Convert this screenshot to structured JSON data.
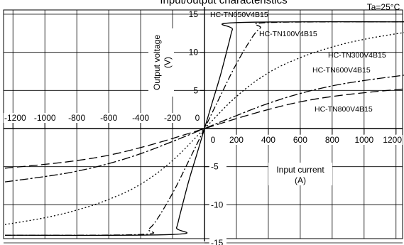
{
  "chart_data": {
    "type": "line",
    "title": "Input/output characteristics",
    "note": "Ta=25°C",
    "xlabel": "Input current",
    "xunit": "(A)",
    "ylabel": "Output voltage",
    "yunit": "(V)",
    "xlim": [
      -1250,
      1250
    ],
    "ylim": [
      -15,
      15
    ],
    "x_ticks": [
      "-1200",
      "-1000",
      "-800",
      "-600",
      "-400",
      "-200",
      "0",
      "200",
      "400",
      "600",
      "800",
      "1000",
      "1200"
    ],
    "y_ticks_pos": [
      "15",
      "10",
      "5"
    ],
    "y_ticks_neg": [
      "-5",
      "-10",
      "-15"
    ],
    "grid": true,
    "series": [
      {
        "name": "HC-TN050V4B15",
        "dash": "",
        "points": [
          [
            -1250,
            -14
          ],
          [
            -200,
            -13.9
          ],
          [
            -175,
            -13
          ],
          [
            -150,
            -11
          ],
          [
            -100,
            -7
          ],
          [
            -50,
            -3.5
          ],
          [
            0,
            0
          ],
          [
            50,
            3.5
          ],
          [
            100,
            7
          ],
          [
            150,
            11
          ],
          [
            175,
            13
          ],
          [
            200,
            13.9
          ],
          [
            1250,
            14
          ]
        ]
      },
      {
        "name": "HC-TN100V4B15",
        "dash": "9,3,2,3",
        "points": [
          [
            -1250,
            -14
          ],
          [
            -400,
            -13.9
          ],
          [
            -350,
            -13.2
          ],
          [
            -300,
            -12
          ],
          [
            -200,
            -8.5
          ],
          [
            -100,
            -4.3
          ],
          [
            0,
            0
          ],
          [
            100,
            4.3
          ],
          [
            200,
            8.5
          ],
          [
            300,
            12
          ],
          [
            350,
            13.2
          ],
          [
            400,
            13.9
          ],
          [
            1250,
            14
          ]
        ]
      },
      {
        "name": "HC-TN300V4B15",
        "dash": "2,3",
        "points": [
          [
            -1250,
            -12.6
          ],
          [
            -1000,
            -11.7
          ],
          [
            -800,
            -10.7
          ],
          [
            -600,
            -9.3
          ],
          [
            -400,
            -7.3
          ],
          [
            -200,
            -4.2
          ],
          [
            0,
            0
          ],
          [
            200,
            4.2
          ],
          [
            400,
            7.3
          ],
          [
            600,
            9.3
          ],
          [
            800,
            10.7
          ],
          [
            1000,
            11.7
          ],
          [
            1250,
            12.6
          ]
        ]
      },
      {
        "name": "HC-TN600V4B15",
        "dash": "12,3,3,3",
        "points": [
          [
            -1250,
            -7
          ],
          [
            -1000,
            -6.3
          ],
          [
            -800,
            -5.6
          ],
          [
            -600,
            -4.6
          ],
          [
            -400,
            -3.3
          ],
          [
            -200,
            -1.7
          ],
          [
            0,
            0
          ],
          [
            200,
            1.7
          ],
          [
            400,
            3.3
          ],
          [
            600,
            4.6
          ],
          [
            800,
            5.6
          ],
          [
            1000,
            6.3
          ],
          [
            1250,
            7
          ]
        ]
      },
      {
        "name": "HC-TN800V4B15",
        "dash": "12,5",
        "points": [
          [
            -1250,
            -5.2
          ],
          [
            -1000,
            -4.7
          ],
          [
            -800,
            -4.2
          ],
          [
            -600,
            -3.5
          ],
          [
            -400,
            -2.5
          ],
          [
            -200,
            -1.3
          ],
          [
            0,
            0
          ],
          [
            200,
            1.3
          ],
          [
            400,
            2.5
          ],
          [
            600,
            3.5
          ],
          [
            800,
            4.2
          ],
          [
            1000,
            4.7
          ],
          [
            1250,
            5.2
          ]
        ]
      }
    ]
  }
}
